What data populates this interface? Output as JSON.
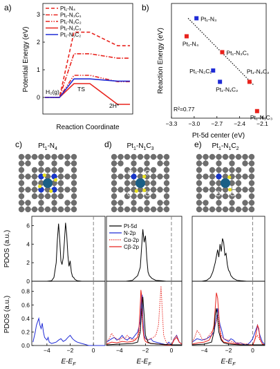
{
  "panel_letters": [
    "a)",
    "b)",
    "c)",
    "d)",
    "e)"
  ],
  "panel_titles": {
    "c": [
      "Pt",
      "1",
      "-N",
      "4"
    ],
    "d": [
      "Pt",
      "1",
      "-N",
      "1",
      "C",
      "3"
    ],
    "e": [
      "Pt",
      "1",
      "-N",
      "1",
      "C",
      "2"
    ]
  },
  "colors": {
    "pt_n4": "#e8221c",
    "pt_n3c1": "#e8221c",
    "pt_n2c2": "#e8221c",
    "pt_n1c3": "#e8221c",
    "pt_n1c2": "#1f2bd6",
    "blue_marker": "#1f2bd6",
    "red_marker": "#e8221c",
    "pt_atom": "#1a5f86",
    "n_atom": "#1836c8",
    "c_atom": "#6e6e6e",
    "h_atom": "#e8e020"
  },
  "chart_data": [
    {
      "panel": "a",
      "type": "line",
      "xlabel": "Reaction Coordinate",
      "ylabel": "Potential Energy (eV)",
      "ylim": [
        -0.6,
        3.4
      ],
      "yticks": [
        0,
        1,
        2,
        3
      ],
      "annotations": [
        "H₂(g)",
        "TS",
        "2H*"
      ],
      "categories": [
        "H₂(g)",
        "TS",
        "2H*"
      ],
      "series": [
        {
          "name": "Pt₁-N₄",
          "style": "dashed",
          "color": "#e8221c",
          "values": [
            0.0,
            2.36,
            1.87
          ]
        },
        {
          "name": "Pt₁-N₃C₁",
          "style": "dash-dot",
          "color": "#e8221c",
          "values": [
            0.0,
            1.58,
            1.42
          ]
        },
        {
          "name": "Pt₁-N₂C₂",
          "style": "dash-dot-dot",
          "color": "#e8221c",
          "values": [
            0.0,
            0.8,
            0.57
          ]
        },
        {
          "name": "Pt₁-N₁C₃",
          "style": "solid",
          "color": "#e8221c",
          "values": [
            0.0,
            0.5,
            -0.25
          ]
        },
        {
          "name": "Pt₁-N₁C₂",
          "style": "solid",
          "color": "#1f2bd6",
          "values": [
            0.0,
            0.67,
            0.59
          ]
        }
      ]
    },
    {
      "panel": "b",
      "type": "scatter",
      "xlabel": "Pt-5d center (eV)",
      "ylabel": "Reaction Energy (eV)",
      "xlim": [
        -3.3,
        -2.05
      ],
      "xticks": [
        -3.3,
        -3.0,
        -2.7,
        -2.4,
        -2.1
      ],
      "ylim": [
        -0.45,
        2.8
      ],
      "annotation": "R²=0.77",
      "points": [
        {
          "label": "Pt₁-N₃",
          "x": -2.97,
          "y": 2.38,
          "color": "#1f2bd6"
        },
        {
          "label": "Pt₁-N₄",
          "x": -3.1,
          "y": 1.87,
          "color": "#e8221c"
        },
        {
          "label": "Pt₁-N₃C₁",
          "x": -2.63,
          "y": 1.42,
          "color": "#e8221c"
        },
        {
          "label": "Pt₁-N₂C₁",
          "x": -2.75,
          "y": 0.9,
          "color": "#1f2bd6"
        },
        {
          "label": "Pt₁-N₂C₂",
          "x": -2.27,
          "y": 0.58,
          "color": "#e8221c"
        },
        {
          "label": "Pt₁-N₁C₂",
          "x": -2.66,
          "y": 0.58,
          "color": "#1f2bd6"
        },
        {
          "label": "Pt₁-N₁C₃",
          "x": -2.17,
          "y": -0.25,
          "color": "#e8221c"
        }
      ],
      "fit_line": {
        "x": [
          -3.08,
          -2.22
        ],
        "y": [
          2.38,
          0.5
        ],
        "style": "dotted"
      }
    },
    {
      "panel": "c-top",
      "type": "line",
      "ylabel": "PDOS (a.u.)",
      "xlim": [
        -5.3,
        1.0
      ],
      "ylim": [
        0,
        7
      ],
      "yticks": [
        0,
        2,
        4,
        6
      ],
      "series": [
        {
          "name": "Pt-5d",
          "color": "#000000",
          "x": [
            -5.2,
            -4.0,
            -3.6,
            -3.4,
            -3.2,
            -3.1,
            -3.0,
            -2.9,
            -2.8,
            -2.7,
            -2.6,
            -2.5,
            -2.4,
            -2.3,
            -2.2,
            -2.1,
            -2.0,
            -1.9,
            -1.8,
            -1.7,
            -1.6,
            -1.4,
            -1.0,
            -0.5,
            0.0,
            0.5,
            1.0
          ],
          "y": [
            0.0,
            0.0,
            0.05,
            0.4,
            2.0,
            4.5,
            6.2,
            4.5,
            2.2,
            1.8,
            2.5,
            4.2,
            6.3,
            5.0,
            2.8,
            1.6,
            2.2,
            1.0,
            0.5,
            0.4,
            0.2,
            0.05,
            0.0,
            0.0,
            0.0,
            0.0,
            0.0
          ]
        }
      ]
    },
    {
      "panel": "d-top",
      "type": "line",
      "xlim": [
        -5.0,
        0.8
      ],
      "ylim": [
        0,
        7
      ],
      "legend": [
        "Pt-5d",
        "N-2p",
        "Cα-2p",
        "Cβ-2p"
      ],
      "series": [
        {
          "name": "Pt-5d",
          "color": "#000000",
          "x": [
            -5.0,
            -4.0,
            -3.5,
            -3.0,
            -2.6,
            -2.4,
            -2.3,
            -2.2,
            -2.1,
            -2.0,
            -1.9,
            -1.8,
            -1.7,
            -1.5,
            -1.2,
            -0.8,
            -0.4,
            0.0,
            0.8
          ],
          "y": [
            0.0,
            0.0,
            0.0,
            0.1,
            0.6,
            1.5,
            3.5,
            5.6,
            4.2,
            4.9,
            2.5,
            1.0,
            0.6,
            0.3,
            0.1,
            0.05,
            0.0,
            0.0,
            0.0
          ]
        }
      ]
    },
    {
      "panel": "e-top",
      "type": "line",
      "xlim": [
        -5.0,
        1.0
      ],
      "ylim": [
        0,
        7
      ],
      "series": [
        {
          "name": "Pt-5d",
          "color": "#000000",
          "x": [
            -5.0,
            -4.2,
            -3.8,
            -3.5,
            -3.3,
            -3.1,
            -2.9,
            -2.8,
            -2.7,
            -2.6,
            -2.5,
            -2.4,
            -2.3,
            -2.2,
            -2.1,
            -2.0,
            -1.9,
            -1.8,
            -1.6,
            -1.3,
            -1.0,
            -0.5,
            0.0,
            1.0
          ],
          "y": [
            0.0,
            0.0,
            0.1,
            0.4,
            1.0,
            2.0,
            3.4,
            2.6,
            4.0,
            3.2,
            4.6,
            4.2,
            2.8,
            3.0,
            1.8,
            1.2,
            1.0,
            0.6,
            0.3,
            0.1,
            0.05,
            0.0,
            0.0,
            0.0
          ]
        }
      ]
    },
    {
      "panel": "c-bottom",
      "type": "line",
      "xlabel": "E-E_F",
      "ylabel": "PDOS (a.u.)",
      "xlim": [
        -5.3,
        1.0
      ],
      "xticks": [
        -4,
        -2,
        0
      ],
      "ylim": [
        0,
        0.95
      ],
      "yticks": [
        0.0,
        0.2,
        0.4,
        0.6,
        0.8
      ],
      "series": [
        {
          "name": "N-2p",
          "color": "#1f2bd6",
          "x": [
            -5.2,
            -5.0,
            -4.9,
            -4.8,
            -4.7,
            -4.6,
            -4.5,
            -4.4,
            -4.3,
            -4.2,
            -4.1,
            -4.0,
            -3.9,
            -3.8,
            -3.6,
            -3.4,
            -3.2,
            -3.0,
            -2.8,
            -2.6,
            -2.4,
            -2.2,
            -2.0,
            -1.8,
            -1.6,
            -1.4,
            -1.2,
            -1.0,
            -0.8,
            -0.6,
            -0.4,
            -0.2,
            0.0,
            0.2,
            0.4,
            0.6,
            0.8,
            1.0
          ],
          "y": [
            0.05,
            0.2,
            0.3,
            0.35,
            0.4,
            0.3,
            0.25,
            0.33,
            0.2,
            0.12,
            0.1,
            0.08,
            0.12,
            0.05,
            0.03,
            0.04,
            0.05,
            0.08,
            0.1,
            0.06,
            0.08,
            0.12,
            0.15,
            0.1,
            0.07,
            0.05,
            0.04,
            0.03,
            0.02,
            0.01,
            0.0,
            0.0,
            0.0,
            0.0,
            0.0,
            0.0,
            0.0,
            0.0
          ]
        }
      ]
    },
    {
      "panel": "d-bottom",
      "type": "line",
      "xlabel": "E-E_F",
      "xlim": [
        -5.0,
        0.8
      ],
      "xticks": [
        -4,
        -2,
        0
      ],
      "ylim": [
        0,
        0.95
      ],
      "series": [
        {
          "name": "N-2p",
          "color": "#1f2bd6",
          "x": [
            -5.0,
            -4.6,
            -4.4,
            -4.2,
            -4.0,
            -3.8,
            -3.6,
            -3.4,
            -3.2,
            -3.0,
            -2.8,
            -2.6,
            -2.4,
            -2.3,
            -2.25,
            -2.2,
            -2.1,
            -2.0,
            -1.8,
            -1.6,
            -1.4,
            -1.2,
            -1.0,
            -0.8,
            -0.6,
            -0.4,
            -0.2,
            0.0,
            0.2,
            0.4,
            0.6,
            0.8
          ],
          "y": [
            0.05,
            0.1,
            0.12,
            0.08,
            0.1,
            0.15,
            0.1,
            0.08,
            0.12,
            0.1,
            0.15,
            0.2,
            0.35,
            0.72,
            0.75,
            0.4,
            0.15,
            0.1,
            0.08,
            0.1,
            0.06,
            0.05,
            0.04,
            0.03,
            0.02,
            0.01,
            0.05,
            0.0,
            0.1,
            0.15,
            0.05,
            0.02
          ]
        },
        {
          "name": "Cα-2p",
          "color": "#e8221c",
          "style": "dotted",
          "x": [
            -5.0,
            -4.8,
            -4.6,
            -4.4,
            -4.2,
            -4.0,
            -3.8,
            -3.6,
            -3.4,
            -3.2,
            -3.0,
            -2.8,
            -2.6,
            -2.4,
            -2.3,
            -2.2,
            -2.1,
            -2.0,
            -1.8,
            -1.6,
            -1.4,
            -1.2,
            -1.0,
            -0.9,
            -0.8,
            -0.7,
            -0.6,
            -0.4,
            -0.2,
            0.0,
            0.2,
            0.4,
            0.6,
            0.8
          ],
          "y": [
            0.05,
            0.1,
            0.18,
            0.12,
            0.1,
            0.08,
            0.12,
            0.1,
            0.15,
            0.1,
            0.08,
            0.1,
            0.12,
            0.25,
            0.55,
            0.3,
            0.12,
            0.1,
            0.08,
            0.1,
            0.12,
            0.15,
            0.3,
            0.6,
            0.88,
            0.5,
            0.15,
            0.05,
            0.02,
            0.0,
            0.1,
            0.15,
            0.05,
            0.02
          ]
        },
        {
          "name": "Cβ-2p",
          "color": "#e8221c",
          "x": [
            -5.0,
            -4.6,
            -4.2,
            -3.8,
            -3.4,
            -3.0,
            -2.8,
            -2.6,
            -2.5,
            -2.4,
            -2.35,
            -2.3,
            -2.25,
            -2.2,
            -2.1,
            -2.0,
            -1.8,
            -1.5,
            -1.0,
            -0.5,
            0.0,
            0.2,
            0.4,
            0.6,
            0.8
          ],
          "y": [
            0.02,
            0.05,
            0.04,
            0.06,
            0.05,
            0.06,
            0.08,
            0.12,
            0.25,
            0.6,
            0.82,
            0.75,
            0.5,
            0.25,
            0.1,
            0.06,
            0.04,
            0.03,
            0.02,
            0.01,
            0.0,
            0.08,
            0.12,
            0.05,
            0.02
          ]
        },
        {
          "name": "Pt-5d",
          "color": "#000000",
          "x": [
            -5.0,
            -4.0,
            -3.0,
            -2.6,
            -2.4,
            -2.3,
            -2.2,
            -2.1,
            -2.0,
            -1.8,
            -1.6,
            -1.0,
            0.0,
            0.8
          ],
          "y": [
            0.01,
            0.02,
            0.03,
            0.05,
            0.2,
            0.5,
            0.72,
            0.45,
            0.15,
            0.05,
            0.03,
            0.02,
            0.01,
            0.01
          ]
        }
      ]
    },
    {
      "panel": "e-bottom",
      "type": "line",
      "xlabel": "E-E_F",
      "xlim": [
        -5.0,
        1.0
      ],
      "xticks": [
        -4,
        -2,
        0
      ],
      "ylim": [
        0,
        0.95
      ],
      "series": [
        {
          "name": "N-2p",
          "color": "#1f2bd6",
          "x": [
            -5.0,
            -4.6,
            -4.2,
            -3.8,
            -3.4,
            -3.2,
            -3.0,
            -2.9,
            -2.8,
            -2.7,
            -2.6,
            -2.4,
            -2.2,
            -2.0,
            -1.8,
            -1.6,
            -1.4,
            -1.2,
            -1.0,
            -0.8,
            -0.6,
            -0.4,
            -0.2,
            0.0,
            0.2,
            0.4,
            0.6,
            0.8,
            1.0
          ],
          "y": [
            0.05,
            0.1,
            0.08,
            0.1,
            0.15,
            0.2,
            0.4,
            0.55,
            0.42,
            0.3,
            0.25,
            0.1,
            0.08,
            0.06,
            0.1,
            0.08,
            0.04,
            0.03,
            0.04,
            0.02,
            0.01,
            0.02,
            0.05,
            0.1,
            0.2,
            0.3,
            0.15,
            0.05,
            0.02
          ]
        },
        {
          "name": "Cα-2p",
          "color": "#e8221c",
          "style": "dotted",
          "x": [
            -5.0,
            -4.8,
            -4.6,
            -4.4,
            -4.2,
            -4.0,
            -3.8,
            -3.6,
            -3.4,
            -3.2,
            -3.0,
            -2.9,
            -2.8,
            -2.6,
            -2.4,
            -2.0,
            -1.6,
            -1.2,
            -0.8,
            -0.4,
            0.0,
            0.2,
            0.4,
            0.6,
            0.8,
            1.0
          ],
          "y": [
            0.05,
            0.12,
            0.22,
            0.18,
            0.1,
            0.08,
            0.1,
            0.15,
            0.2,
            0.25,
            0.35,
            0.45,
            0.3,
            0.15,
            0.1,
            0.08,
            0.05,
            0.04,
            0.03,
            0.02,
            0.0,
            0.1,
            0.15,
            0.08,
            0.03,
            0.01
          ]
        },
        {
          "name": "Cβ-2p",
          "color": "#e8221c",
          "x": [
            -5.0,
            -4.5,
            -4.0,
            -3.6,
            -3.4,
            -3.2,
            -3.1,
            -3.0,
            -2.9,
            -2.8,
            -2.7,
            -2.6,
            -2.4,
            -2.0,
            -1.6,
            -1.2,
            -0.8,
            -0.4,
            0.0,
            0.2,
            0.4,
            0.5,
            0.6,
            0.8,
            1.0
          ],
          "y": [
            0.02,
            0.04,
            0.05,
            0.08,
            0.15,
            0.3,
            0.55,
            0.78,
            0.7,
            0.45,
            0.2,
            0.1,
            0.05,
            0.04,
            0.03,
            0.02,
            0.01,
            0.01,
            0.0,
            0.1,
            0.3,
            0.25,
            0.1,
            0.02,
            0.01
          ]
        },
        {
          "name": "Pt-5d",
          "color": "#000000",
          "x": [
            -5.0,
            -4.0,
            -3.4,
            -3.2,
            -3.1,
            -3.0,
            -2.9,
            -2.8,
            -2.6,
            -2.4,
            -2.0,
            -1.0,
            0.0,
            1.0
          ],
          "y": [
            0.01,
            0.02,
            0.05,
            0.2,
            0.45,
            0.55,
            0.4,
            0.2,
            0.08,
            0.04,
            0.02,
            0.01,
            0.01,
            0.01
          ]
        }
      ]
    }
  ]
}
